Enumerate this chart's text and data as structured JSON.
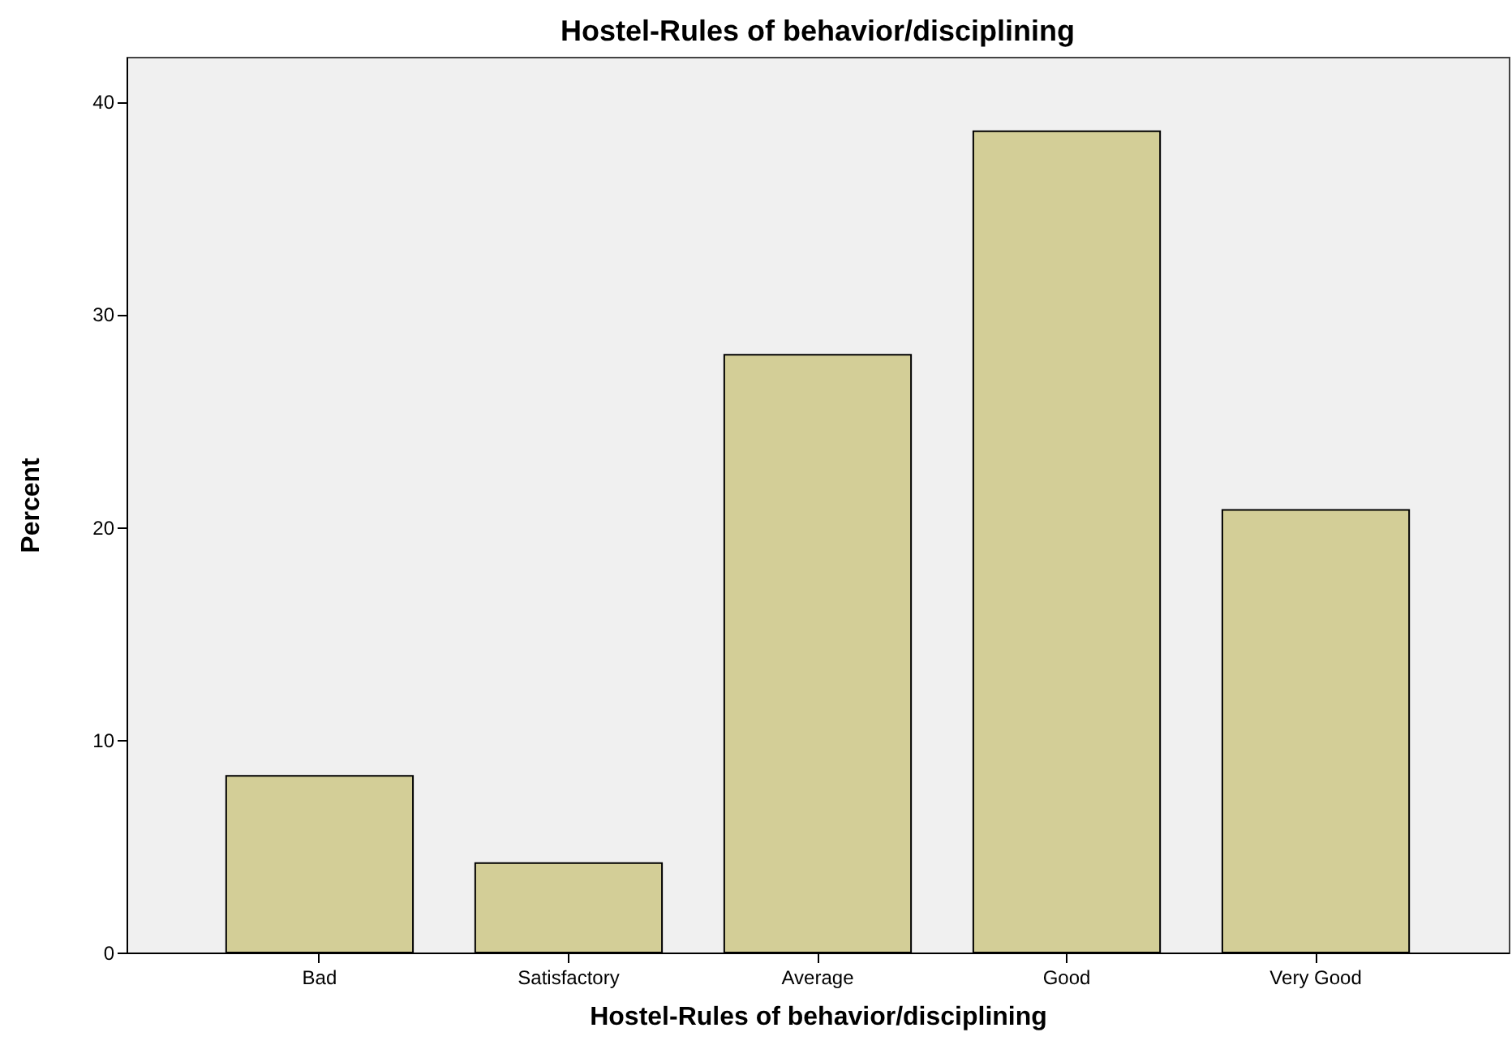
{
  "chart_data": {
    "type": "bar",
    "title": "Hostel-Rules of behavior/disciplining",
    "xlabel": "Hostel-Rules of behavior/disciplining",
    "ylabel": "Percent",
    "categories": [
      "Bad",
      "Satisfactory",
      "Average",
      "Good",
      "Very Good"
    ],
    "values": [
      8.3,
      4.2,
      28.1,
      38.6,
      20.8
    ],
    "color": "#d3ce97",
    "ylim": [
      0,
      42.1
    ],
    "yticks": [
      0,
      10,
      20,
      30,
      40
    ],
    "grid": false
  }
}
